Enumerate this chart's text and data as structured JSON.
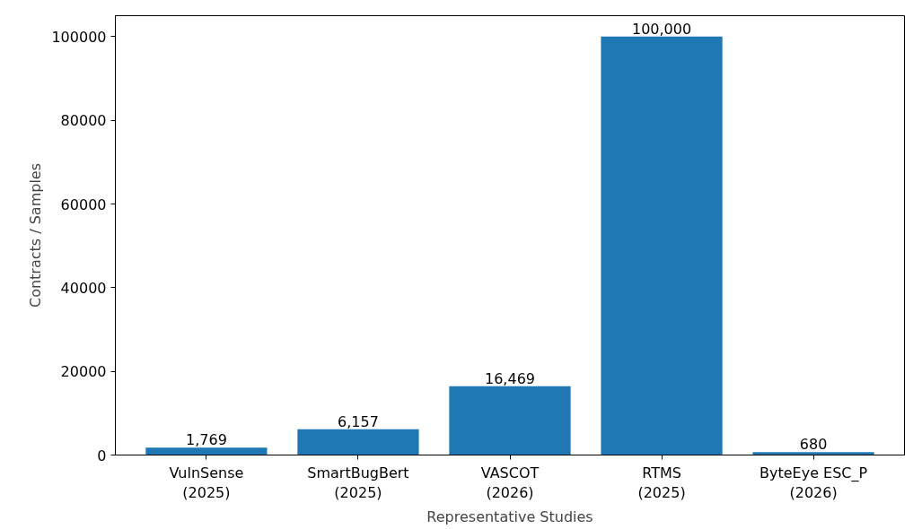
{
  "chart_data": {
    "type": "bar",
    "xlabel": "Representative Studies",
    "ylabel": "Contracts / Samples",
    "categories": [
      "VulnSense\n(2025)",
      "SmartBugBert\n(2025)",
      "VASCOT\n(2026)",
      "RTMS\n(2025)",
      "ByteEye ESC_P\n(2026)"
    ],
    "values": [
      1769,
      6157,
      16469,
      100000,
      680
    ],
    "value_labels": [
      "1,769",
      "6,157",
      "16,469",
      "100,000",
      "680"
    ],
    "color": "#1f77b4",
    "ylim": [
      0,
      105000
    ],
    "yticks": [
      0,
      20000,
      40000,
      60000,
      80000,
      100000
    ],
    "grid": false
  }
}
